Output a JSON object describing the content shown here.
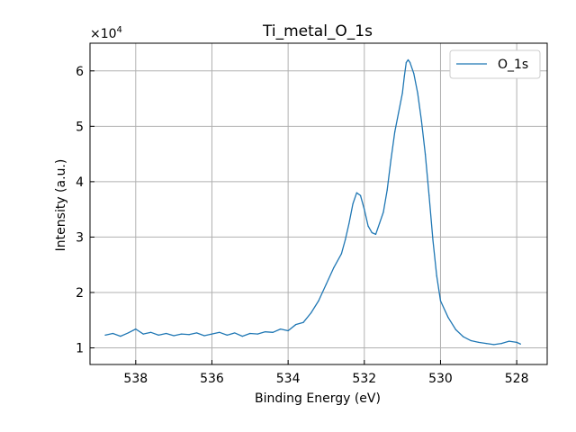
{
  "chart_data": {
    "type": "line",
    "title": "Ti_metal_O_1s",
    "xlabel": "Binding Energy (eV)",
    "ylabel": "Intensity (a.u.)",
    "x_reversed": true,
    "xlim": [
      539.2,
      527.2
    ],
    "ylim": [
      7000,
      65000
    ],
    "x_ticks": [
      538,
      536,
      534,
      532,
      530,
      528
    ],
    "x_tick_labels": [
      "538",
      "536",
      "534",
      "532",
      "530",
      "528"
    ],
    "y_ticks": [
      1,
      2,
      3,
      4,
      5,
      6
    ],
    "y_tick_labels": [
      "1",
      "2",
      "3",
      "4",
      "5",
      "6"
    ],
    "y_multiplier": "×10",
    "y_exponent": "4",
    "y_scale": 10000,
    "grid": true,
    "legend_position": "top-right",
    "colors": {
      "line": "#1f77b4",
      "grid": "#b0b0b0",
      "legend_border": "#cccccc"
    },
    "series": [
      {
        "name": "O_1s",
        "x": [
          538.8,
          538.6,
          538.4,
          538.2,
          538.0,
          537.8,
          537.6,
          537.4,
          537.2,
          537.0,
          536.8,
          536.6,
          536.4,
          536.2,
          536.0,
          535.8,
          535.6,
          535.4,
          535.2,
          535.0,
          534.8,
          534.6,
          534.4,
          534.2,
          534.0,
          533.8,
          533.6,
          533.4,
          533.2,
          533.0,
          532.8,
          532.6,
          532.5,
          532.4,
          532.3,
          532.2,
          532.1,
          532.0,
          531.9,
          531.8,
          531.7,
          531.6,
          531.5,
          531.4,
          531.3,
          531.2,
          531.1,
          531.0,
          530.95,
          530.9,
          530.85,
          530.8,
          530.7,
          530.6,
          530.5,
          530.4,
          530.3,
          530.2,
          530.1,
          530.0,
          529.8,
          529.6,
          529.4,
          529.2,
          529.0,
          528.8,
          528.6,
          528.4,
          528.2,
          528.0,
          527.9
        ],
        "y": [
          12300,
          12600,
          12100,
          12700,
          13400,
          12500,
          12800,
          12300,
          12600,
          12200,
          12500,
          12400,
          12700,
          12200,
          12500,
          12800,
          12300,
          12700,
          12100,
          12600,
          12500,
          12900,
          12800,
          13400,
          13100,
          14200,
          14600,
          16300,
          18500,
          21500,
          24500,
          27000,
          29500,
          32500,
          36000,
          38000,
          37500,
          35000,
          32000,
          30800,
          30500,
          32500,
          34500,
          38500,
          44000,
          49000,
          52500,
          56000,
          59000,
          61500,
          62000,
          61500,
          59500,
          56000,
          51000,
          45000,
          37500,
          29500,
          23000,
          18500,
          15500,
          13300,
          12000,
          11300,
          11000,
          10800,
          10600,
          10800,
          11200,
          11000,
          10700
        ]
      }
    ]
  }
}
